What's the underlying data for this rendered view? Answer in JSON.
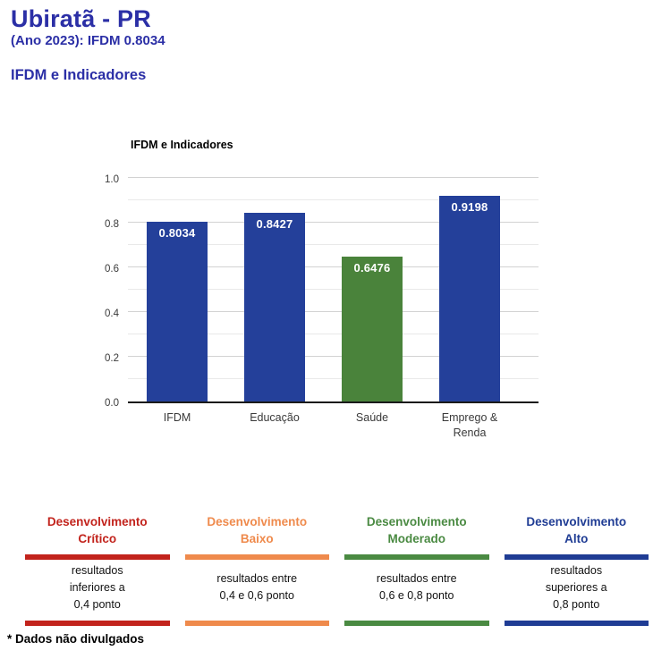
{
  "header": {
    "title": "Ubiratã - PR",
    "subtitle": "(Ano 2023): IFDM 0.8034",
    "section_heading": "IFDM e Indicadores"
  },
  "colors": {
    "heading_blue": "#2b2fa6",
    "bar_blue": "#24409a",
    "bar_green": "#4a833b",
    "critical_red": "#c2231c",
    "low_orange": "#ef8a4c",
    "moderate_green": "#4a8a42",
    "high_blue": "#1f3c94"
  },
  "chart_data": {
    "type": "bar",
    "title": "IFDM e Indicadores",
    "categories": [
      "IFDM",
      "Educação",
      "Saúde",
      "Emprego &\nRenda"
    ],
    "values": [
      0.8034,
      0.8427,
      0.6476,
      0.9198
    ],
    "value_labels": [
      "0.8034",
      "0.8427",
      "0.6476",
      "0.9198"
    ],
    "bar_colors": [
      "#24409a",
      "#24409a",
      "#4a833b",
      "#24409a"
    ],
    "xlabel": "",
    "ylabel": "",
    "ylim": [
      0,
      1
    ],
    "yticks": [
      0,
      0.2,
      0.4,
      0.6,
      0.8,
      1.0
    ],
    "ytick_labels": [
      "0.0",
      "0.2",
      "0.4",
      "0.6",
      "0.8",
      "1.0"
    ],
    "minor_grid_step": 0.1,
    "grid": true,
    "legend_position": "none"
  },
  "legend": {
    "cards": [
      {
        "title": "Desenvolvimento\nCrítico",
        "description": "resultados\ninferiores a\n0,4 ponto",
        "color": "#c2231c"
      },
      {
        "title": "Desenvolvimento\nBaixo",
        "description": "resultados entre\n0,4 e 0,6 ponto",
        "color": "#ef8a4c"
      },
      {
        "title": "Desenvolvimento\nModerado",
        "description": "resultados entre\n0,6 e 0,8 ponto",
        "color": "#4a8a42"
      },
      {
        "title": "Desenvolvimento\nAlto",
        "description": "resultados\nsuperiores a\n0,8 ponto",
        "color": "#1f3c94"
      }
    ]
  },
  "footer": {
    "note": "* Dados não divulgados"
  }
}
